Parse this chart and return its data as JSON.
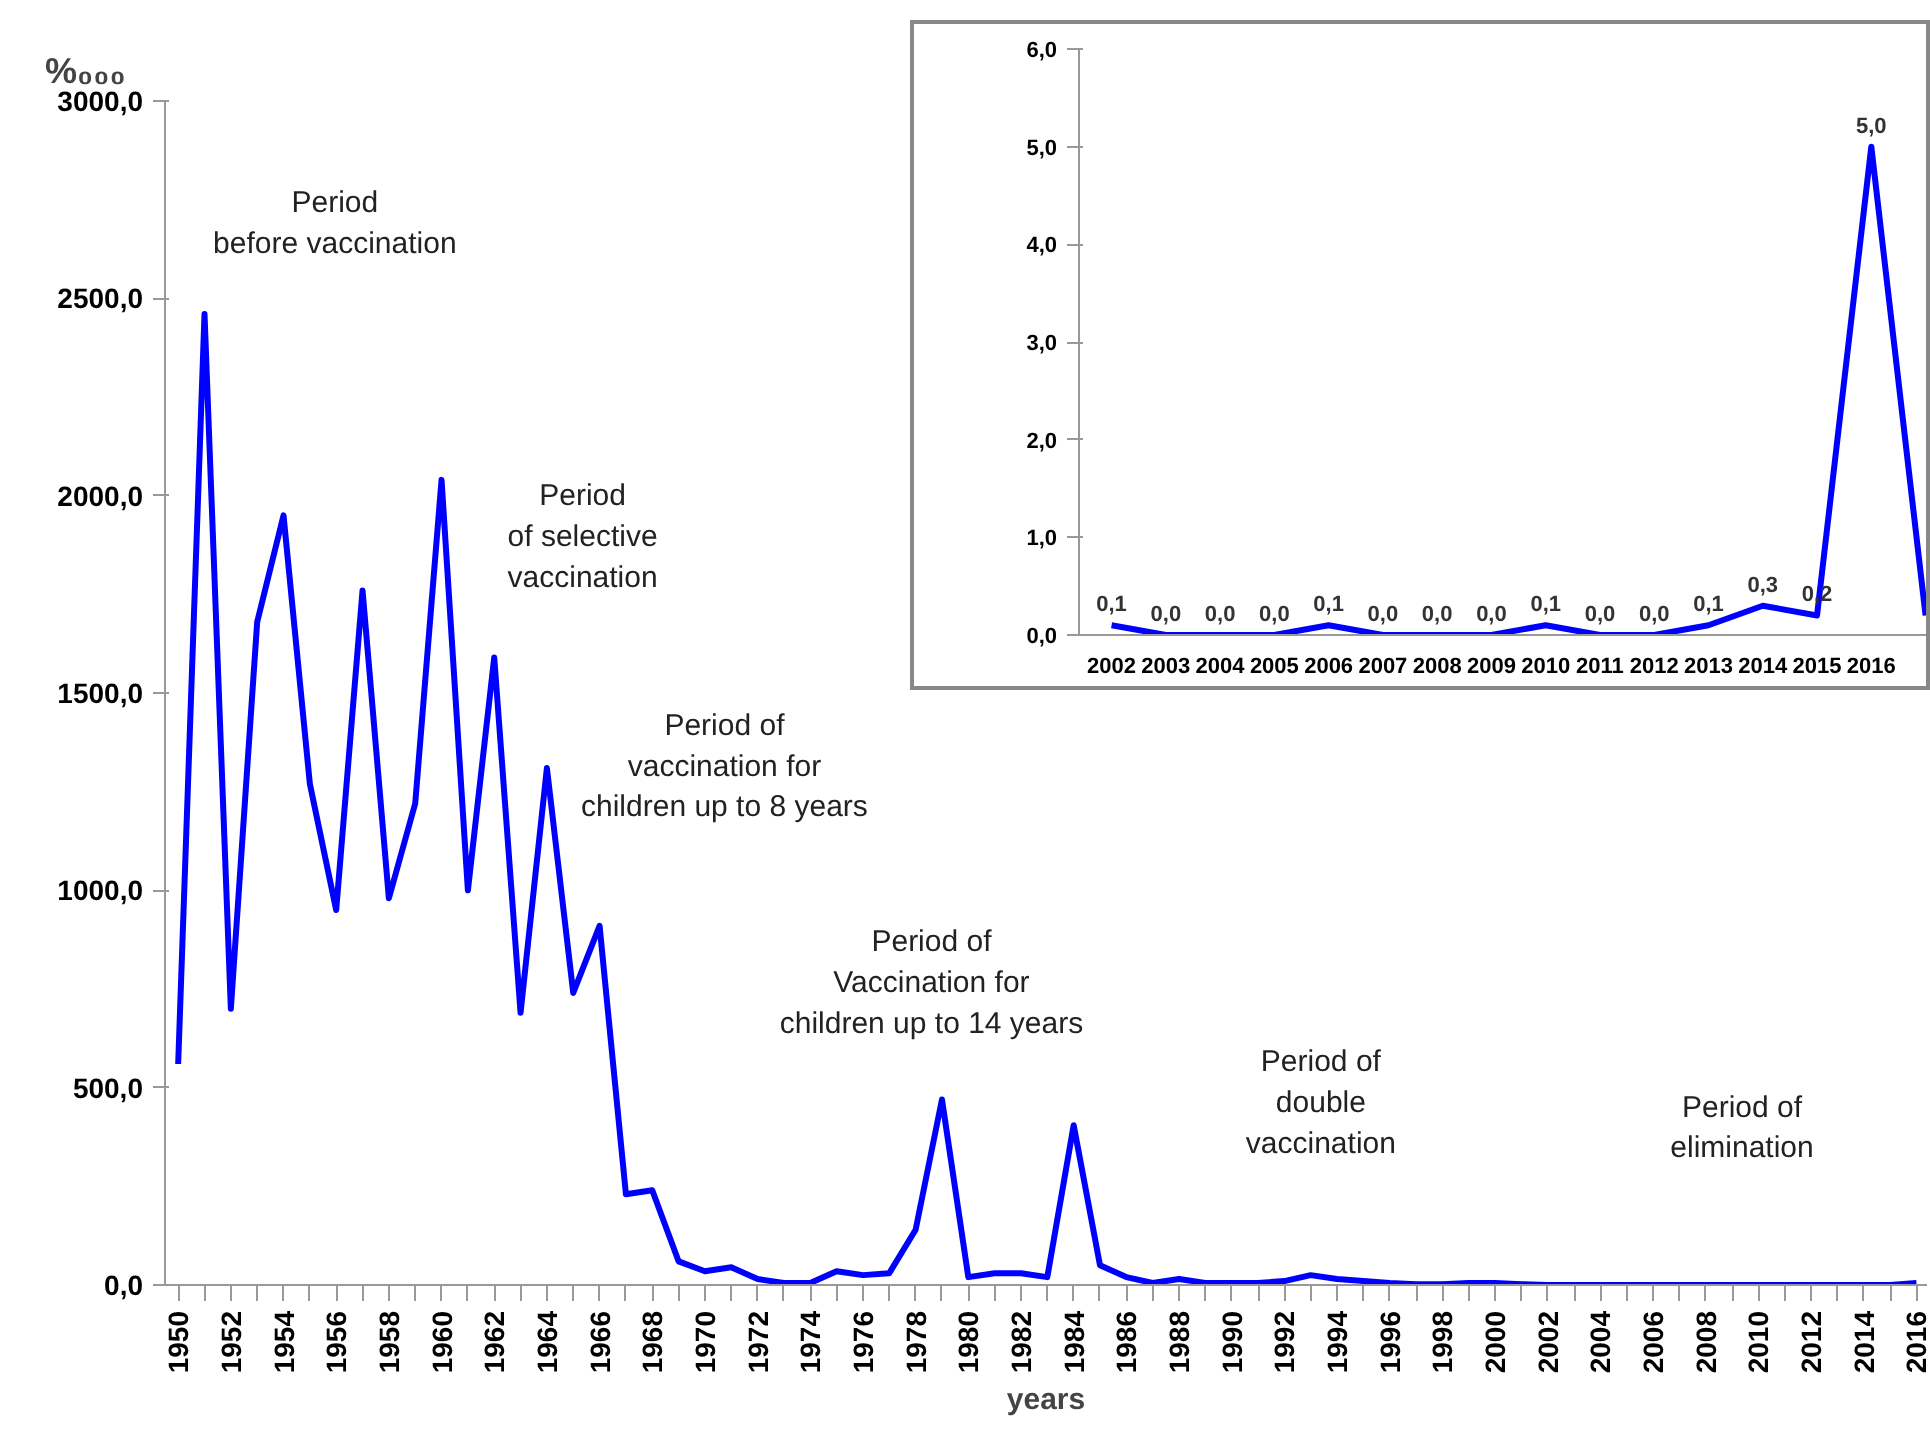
{
  "chart_data": [
    {
      "type": "line",
      "xlabel": "years",
      "ylabel": "%₀₀₀",
      "x": [
        1950,
        1951,
        1952,
        1953,
        1954,
        1955,
        1956,
        1957,
        1958,
        1959,
        1960,
        1961,
        1962,
        1963,
        1964,
        1965,
        1966,
        1967,
        1968,
        1969,
        1970,
        1971,
        1972,
        1973,
        1974,
        1975,
        1976,
        1977,
        1978,
        1979,
        1980,
        1981,
        1982,
        1983,
        1984,
        1985,
        1986,
        1987,
        1988,
        1989,
        1990,
        1991,
        1992,
        1993,
        1994,
        1995,
        1996,
        1997,
        1998,
        1999,
        2000,
        2001,
        2002,
        2003,
        2004,
        2005,
        2006,
        2007,
        2008,
        2009,
        2010,
        2011,
        2012,
        2013,
        2014,
        2015,
        2016
      ],
      "series": [
        {
          "color": "#0000ff",
          "values": [
            560,
            2460,
            700,
            1680,
            1950,
            1270,
            950,
            1760,
            980,
            1220,
            2040,
            1000,
            1590,
            690,
            1310,
            740,
            910,
            230,
            240,
            60,
            35,
            45,
            15,
            5,
            5,
            35,
            25,
            30,
            140,
            470,
            20,
            30,
            30,
            20,
            405,
            50,
            20,
            5,
            15,
            5,
            5,
            5,
            10,
            25,
            15,
            10,
            5,
            2,
            2,
            5,
            5,
            2,
            0,
            0,
            0,
            0,
            0,
            0,
            0,
            0,
            0,
            0,
            0,
            0,
            0,
            0,
            5
          ]
        }
      ],
      "xlim": [
        1949.5,
        2016.4
      ],
      "ylim": [
        0,
        3000
      ],
      "xticks": [
        1950,
        {
          "value": 1951,
          "label": null
        },
        1952,
        {
          "value": 1953,
          "label": null
        },
        1954,
        {
          "value": 1955,
          "label": null
        },
        1956,
        {
          "value": 1957,
          "label": null
        },
        1958,
        {
          "value": 1959,
          "label": null
        },
        1960,
        {
          "value": 1961,
          "label": null
        },
        1962,
        {
          "value": 1963,
          "label": null
        },
        1964,
        {
          "value": 1965,
          "label": null
        },
        1966,
        {
          "value": 1967,
          "label": null
        },
        1968,
        {
          "value": 1969,
          "label": null
        },
        1970,
        {
          "value": 1971,
          "label": null
        },
        1972,
        {
          "value": 1973,
          "label": null
        },
        1974,
        {
          "value": 1975,
          "label": null
        },
        1976,
        {
          "value": 1977,
          "label": null
        },
        1978,
        {
          "value": 1979,
          "label": null
        },
        1980,
        {
          "value": 1981,
          "label": null
        },
        1982,
        {
          "value": 1983,
          "label": null
        },
        1984,
        {
          "value": 1985,
          "label": null
        },
        1986,
        {
          "value": 1987,
          "label": null
        },
        1988,
        {
          "value": 1989,
          "label": null
        },
        1990,
        {
          "value": 1991,
          "label": null
        },
        1992,
        {
          "value": 1993,
          "label": null
        },
        1994,
        {
          "value": 1995,
          "label": null
        },
        1996,
        {
          "value": 1997,
          "label": null
        },
        1998,
        {
          "value": 1999,
          "label": null
        },
        2000,
        {
          "value": 2001,
          "label": null
        },
        2002,
        {
          "value": 2003,
          "label": null
        },
        2004,
        {
          "value": 2005,
          "label": null
        },
        2006,
        {
          "value": 2007,
          "label": null
        },
        2008,
        {
          "value": 2009,
          "label": null
        },
        2010,
        {
          "value": 2011,
          "label": null
        },
        2012,
        {
          "value": 2013,
          "label": null
        },
        2014,
        {
          "value": 2015,
          "label": null
        },
        2016
      ],
      "yticks": [
        {
          "value": 0,
          "label": "0,0"
        },
        {
          "value": 500,
          "label": "500,0"
        },
        {
          "value": 1000,
          "label": "1000,0"
        },
        {
          "value": 1500,
          "label": "1500,0"
        },
        {
          "value": 2000,
          "label": "2000,0"
        },
        {
          "value": 2500,
          "label": "2500,0"
        },
        {
          "value": 3000,
          "label": "3000,0"
        }
      ],
      "grid": false,
      "marker": "none",
      "line_style": "solid",
      "annotations": [
        "Period\nbefore vaccination",
        "Period\nof selective\nvaccination",
        "Period of\nvaccination for\nchildren up to 8 years",
        "Period of\nVaccination for\nchildren up to 14 years",
        "Period of\ndouble\nvaccination",
        "Period of\nelimination"
      ]
    },
    {
      "type": "line",
      "categories": [
        "2002",
        "2003",
        "2004",
        "2005",
        "2006",
        "2007",
        "2008",
        "2009",
        "2010",
        "2011",
        "2012",
        "2013",
        "2014",
        "2015",
        "2016",
        null
      ],
      "series": [
        {
          "color": "#0000ff",
          "values": [
            0.1,
            0.0,
            0.0,
            0.0,
            0.1,
            0.0,
            0.0,
            0.0,
            0.1,
            0.0,
            0.0,
            0.1,
            0.3,
            0.2,
            5.0,
            0.2
          ]
        }
      ],
      "value_labels": [
        "0,1",
        "0,0",
        "0,0",
        "0,0",
        "0,1",
        "0,0",
        "0,0",
        "0,0",
        "0,1",
        "0,0",
        "0,0",
        "0,1",
        "0,3",
        "0,2",
        "5,0",
        null
      ],
      "ylim": [
        0,
        6
      ],
      "yticks": [
        {
          "value": 0,
          "label": "0,0"
        },
        {
          "value": 1,
          "label": "1,0"
        },
        {
          "value": 2,
          "label": "2,0"
        },
        {
          "value": 3,
          "label": "3,0"
        },
        {
          "value": 4,
          "label": "4,0"
        },
        {
          "value": 5,
          "label": "5,0"
        },
        {
          "value": 6,
          "label": "6,0"
        }
      ],
      "grid": false,
      "marker": "none",
      "line_style": "solid"
    }
  ]
}
